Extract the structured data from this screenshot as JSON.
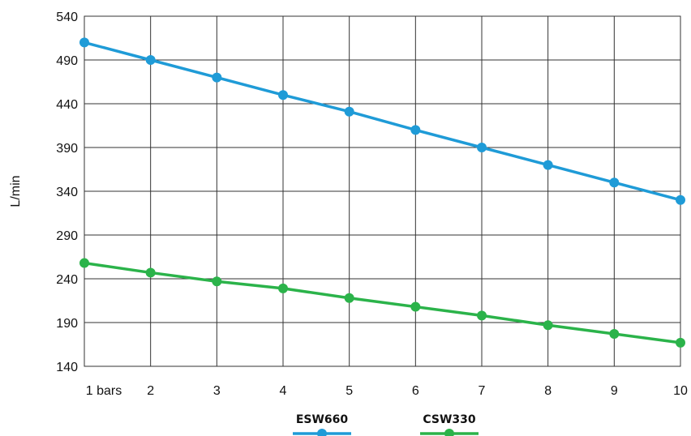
{
  "chart_data": {
    "type": "line",
    "title": "",
    "xlabel": "",
    "ylabel": "L/min",
    "categories": [
      "1 bars",
      "2",
      "3",
      "4",
      "5",
      "6",
      "7",
      "8",
      "9",
      "10"
    ],
    "ylim": [
      140,
      540
    ],
    "yticks": [
      "140",
      "190",
      "240",
      "290",
      "340",
      "390",
      "440",
      "490",
      "540"
    ],
    "grid": true,
    "legend": "bottom-center",
    "series": [
      {
        "name": "ESW660",
        "color": "#1f9bd7",
        "values": [
          510,
          490,
          470,
          450,
          431,
          410,
          390,
          370,
          350,
          330
        ]
      },
      {
        "name": "CSW330",
        "color": "#2bb34a",
        "values": [
          258,
          247,
          237,
          229,
          218,
          208,
          198,
          187,
          177,
          167
        ]
      }
    ]
  }
}
